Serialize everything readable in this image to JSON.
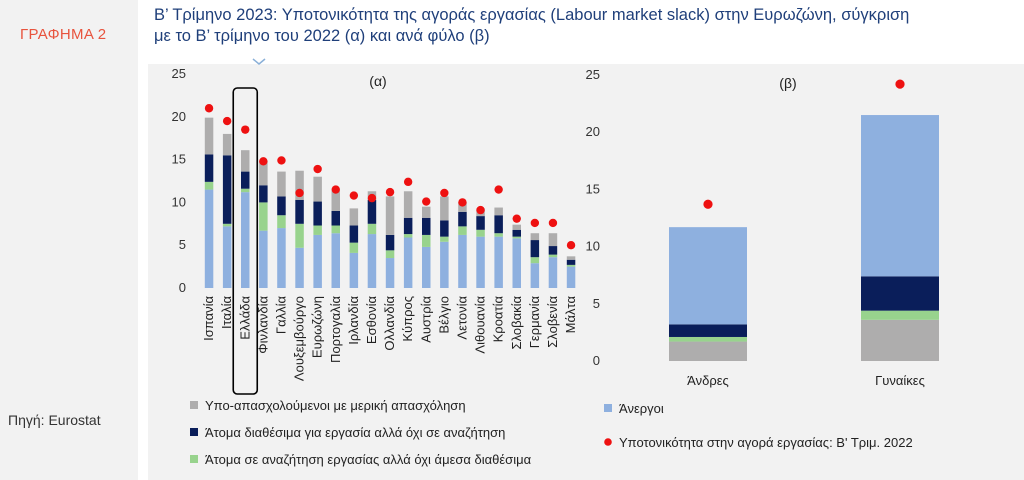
{
  "figure_label": "ΓΡΑΦΗΜΑ 2",
  "source": "Πηγή: Eurostat",
  "title_line1": "Β’ Τρίμηνο 2023: Υποτονικότητα της αγοράς εργασίας (Labour market slack) στην Ευρωζώνη, σύγκριση",
  "title_line2": "με το Β’ τρίμηνο του 2022 (α) και ανά φύλο (β)",
  "colors": {
    "unemployed": "#8eb0df",
    "seeking_not_available": "#98d38d",
    "available_not_seeking": "#0a1e5a",
    "underemployed": "#aeadad",
    "marker_2022": "#ee1111"
  },
  "legend": {
    "underemployed": "Υπο-απασχολούμενοι με μερική απασχόληση",
    "available_not_seeking": "Άτομα διαθέσιμα για εργασία αλλά όχι σε αναζήτηση",
    "seeking_not_available": "Άτομα σε αναζήτηση εργασίας αλλά όχι άμεσα διαθέσιμα",
    "unemployed": "Άνεργοι",
    "marker_2022": "Υποτονικότητα στην αγορά εργασίας: Β' Τριμ. 2022"
  },
  "chart_data": [
    {
      "type": "bar",
      "stacked": true,
      "title": "(α)",
      "ylim": [
        0,
        25
      ],
      "yticks": [
        0,
        5,
        10,
        15,
        20,
        25
      ],
      "highlighted_category": "Ελλάδα",
      "categories": [
        "Ισπανία",
        "Ιταλία",
        "Ελλάδα",
        "Φινλανδία",
        "Γαλλία",
        "Λουξεμβούργο",
        "Ευρωζώνη",
        "Πορτογαλία",
        "Ιρλανδία",
        "Εσθονία",
        "Ολλανδία",
        "Κύπρος",
        "Αυστρία",
        "Βέλγιο",
        "Λετονία",
        "Λιθουανία",
        "Κροατία",
        "Σλοβακία",
        "Γερμανία",
        "Σλοβενία",
        "Μάλτα"
      ],
      "series": [
        {
          "key": "unemployed",
          "values": [
            11.5,
            7.2,
            11.2,
            6.7,
            7.0,
            4.7,
            6.2,
            6.4,
            4.1,
            6.3,
            3.5,
            5.9,
            4.8,
            5.4,
            6.2,
            6.0,
            6.0,
            5.8,
            2.9,
            3.6,
            2.5
          ]
        },
        {
          "key": "seeking_not_available",
          "values": [
            0.9,
            0.3,
            0.4,
            3.3,
            1.5,
            2.8,
            1.1,
            0.9,
            1.2,
            1.2,
            0.9,
            0.4,
            1.4,
            0.6,
            1.0,
            0.8,
            0.4,
            0.2,
            0.7,
            0.3,
            0.2
          ]
        },
        {
          "key": "available_not_seeking",
          "values": [
            3.2,
            8.0,
            2.0,
            2.0,
            2.2,
            2.8,
            2.8,
            1.7,
            2.0,
            2.8,
            1.8,
            1.9,
            2.0,
            1.9,
            1.7,
            1.6,
            2.1,
            0.8,
            2.0,
            1.0,
            0.6
          ]
        },
        {
          "key": "underemployed",
          "values": [
            4.3,
            2.5,
            2.5,
            2.9,
            2.9,
            3.4,
            2.9,
            2.4,
            2.0,
            1.0,
            4.5,
            3.1,
            1.3,
            2.8,
            1.1,
            0.9,
            0.9,
            0.6,
            0.8,
            1.5,
            0.4
          ]
        }
      ],
      "markers_2022": [
        21.0,
        19.5,
        18.5,
        14.8,
        14.9,
        11.1,
        13.9,
        11.5,
        10.8,
        10.5,
        11.2,
        12.4,
        10.1,
        11.1,
        10.0,
        9.1,
        11.5,
        8.1,
        7.6,
        7.6,
        5.0
      ]
    },
    {
      "type": "bar",
      "stacked": true,
      "title": "(β)",
      "ylim": [
        0,
        25
      ],
      "yticks": [
        0,
        5,
        10,
        15,
        20,
        25
      ],
      "categories": [
        "Άνδρες",
        "Γυναίκες"
      ],
      "series": [
        {
          "key": "underemployed",
          "values": [
            1.7,
            3.6
          ]
        },
        {
          "key": "seeking_not_available",
          "values": [
            0.4,
            0.8
          ]
        },
        {
          "key": "available_not_seeking",
          "values": [
            1.1,
            3.0
          ]
        },
        {
          "key": "unemployed",
          "values": [
            8.5,
            14.1
          ]
        }
      ],
      "markers_2022": [
        13.7,
        24.2
      ]
    }
  ]
}
